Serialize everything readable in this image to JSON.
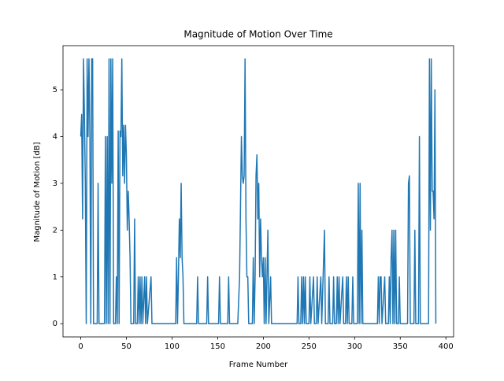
{
  "chart_data": {
    "type": "line",
    "title": "Magnitude of Motion Over Time",
    "x_label": "Frame Number",
    "y_label": "Magnitude of Motion [dB]",
    "x": [
      0,
      1,
      2,
      3,
      4,
      5,
      6,
      7,
      8,
      9,
      10,
      11,
      12,
      13,
      14,
      18,
      19,
      20,
      26,
      27,
      28,
      29,
      30,
      31,
      32,
      33,
      34,
      35,
      36,
      38,
      39,
      40,
      41,
      42,
      43,
      44,
      45,
      46,
      47,
      48,
      49,
      50,
      51,
      52,
      53,
      54,
      55,
      58,
      59,
      60,
      62,
      63,
      64,
      65,
      66,
      67,
      68,
      70,
      71,
      72,
      73,
      77,
      78,
      104,
      105,
      106,
      107,
      108,
      109,
      110,
      111,
      112,
      113,
      127,
      128,
      129,
      138,
      139,
      140,
      151,
      152,
      153,
      161,
      162,
      163,
      172,
      174,
      176,
      177,
      178,
      179,
      180,
      181,
      182,
      183,
      184,
      188,
      189,
      190,
      191,
      192,
      193,
      194,
      195,
      196,
      197,
      198,
      199,
      200,
      201,
      202,
      203,
      204,
      205,
      206,
      208,
      209,
      237,
      238,
      239,
      241,
      242,
      243,
      244,
      245,
      246,
      247,
      250,
      251,
      252,
      255,
      256,
      258,
      259,
      260,
      263,
      264,
      267,
      268,
      271,
      272,
      273,
      276,
      277,
      278,
      280,
      281,
      282,
      283,
      284,
      287,
      288,
      290,
      291,
      292,
      293,
      294,
      297,
      298,
      299,
      303,
      304,
      305,
      306,
      307,
      308,
      309,
      325,
      326,
      327,
      328,
      329,
      330,
      333,
      334,
      337,
      338,
      339,
      340,
      341,
      342,
      343,
      344,
      345,
      346,
      348,
      349,
      350,
      358,
      359,
      360,
      361,
      365,
      366,
      367,
      370,
      371,
      372,
      381,
      382,
      383,
      384,
      385,
      386,
      387,
      388,
      389
    ],
    "series": [
      {
        "name": "motion",
        "color": "#1f77b4",
        "values": [
          4,
          4.47,
          2.24,
          5.66,
          4.47,
          3,
          0,
          5.66,
          4,
          5.66,
          4,
          0,
          5.66,
          5.66,
          0,
          0,
          3,
          0,
          0,
          4,
          0,
          4,
          0,
          5.66,
          0,
          5.66,
          3,
          5.66,
          0,
          0,
          1,
          0,
          4.12,
          0,
          4.12,
          4,
          5.66,
          3.16,
          4.24,
          3,
          4.24,
          3.6,
          2,
          2.83,
          2.24,
          1.41,
          0,
          0,
          2.24,
          0,
          0,
          1,
          0,
          1,
          0,
          1,
          0,
          1,
          0,
          1,
          0,
          1,
          0,
          0,
          1.41,
          0,
          1,
          2.24,
          1.41,
          3,
          1.41,
          1,
          0,
          0,
          1,
          0,
          0,
          1,
          0,
          0,
          1,
          0,
          0,
          1,
          0,
          0,
          1,
          4,
          3.16,
          3,
          3.16,
          5.66,
          2.24,
          1,
          1,
          0,
          0,
          1.41,
          0,
          1,
          3.16,
          3.61,
          2.24,
          3,
          1,
          2.24,
          1.41,
          1,
          1.41,
          0,
          1.41,
          0,
          1,
          2,
          0,
          1,
          0,
          0,
          1,
          0,
          0,
          1,
          0,
          1,
          0,
          1,
          0,
          0,
          1,
          0,
          1,
          0,
          0,
          1,
          0,
          1,
          0,
          2,
          0,
          0,
          1,
          0,
          0,
          1,
          0,
          0,
          1,
          0,
          1,
          0,
          1,
          0,
          0,
          1,
          0,
          1,
          0,
          0,
          1,
          0,
          0,
          3,
          0,
          3,
          0,
          2,
          0,
          0,
          1,
          0,
          1,
          1,
          0,
          1,
          0,
          0,
          1,
          0,
          1.41,
          2,
          0,
          2,
          0,
          2,
          0,
          0,
          1,
          0,
          0,
          3,
          3.16,
          0,
          0,
          2,
          0,
          0,
          4,
          0,
          0,
          5.66,
          2,
          5.66,
          2.83,
          2.83,
          2.24,
          5,
          0
        ]
      }
    ],
    "xlim": [
      -19.45,
      408.45
    ],
    "ylim": [
      -0.283,
      5.943
    ],
    "xticks": [
      0,
      50,
      100,
      150,
      200,
      250,
      300,
      350,
      400
    ],
    "yticks": [
      0,
      1,
      2,
      3,
      4,
      5
    ]
  }
}
